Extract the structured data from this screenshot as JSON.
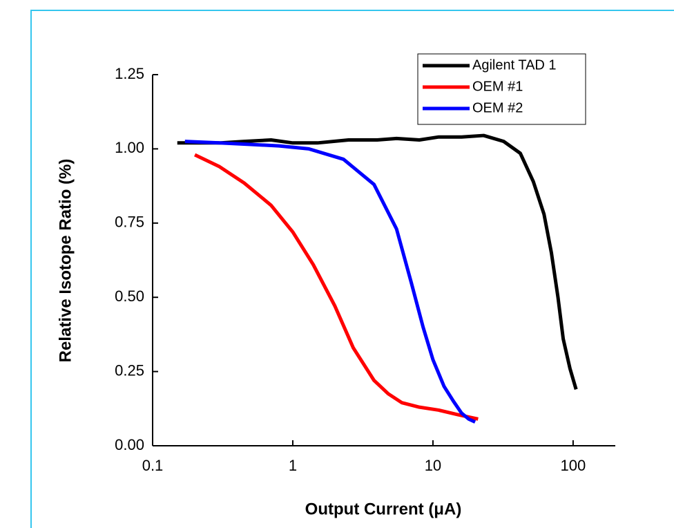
{
  "chart_data": {
    "type": "line",
    "x_label": "Output Current (μA)",
    "y_label": "Relative Isotope Ratio (%)",
    "x_scale": "log",
    "xlim": [
      0.1,
      200
    ],
    "xticks": [
      0.1,
      1,
      10,
      100
    ],
    "ylim": [
      0,
      1.25
    ],
    "yticks": [
      {
        "value": 0,
        "label": "0.00"
      },
      0.25,
      {
        "value": 0.5,
        "label": "0.50"
      },
      0.75,
      {
        "value": 1,
        "label": "1.00"
      },
      1.25
    ],
    "legend": "top-right",
    "series": [
      {
        "name": "Agilent TAD 1",
        "color": "#000000",
        "x": [
          0.15,
          0.2,
          0.3,
          0.45,
          0.7,
          1.0,
          1.5,
          2.5,
          4,
          5.5,
          8,
          11,
          16,
          23,
          32,
          42,
          52,
          62,
          70,
          78,
          85,
          95,
          105
        ],
        "values": [
          1.02,
          1.02,
          1.02,
          1.025,
          1.03,
          1.02,
          1.02,
          1.03,
          1.03,
          1.035,
          1.03,
          1.04,
          1.04,
          1.045,
          1.025,
          0.985,
          0.89,
          0.78,
          0.65,
          0.5,
          0.36,
          0.26,
          0.19
        ]
      },
      {
        "name": "OEM #1",
        "color": "#ff0000",
        "x": [
          0.2,
          0.3,
          0.45,
          0.7,
          1.0,
          1.4,
          2,
          2.7,
          3.8,
          4.8,
          6,
          8,
          11,
          15,
          21
        ],
        "values": [
          0.98,
          0.94,
          0.885,
          0.81,
          0.72,
          0.61,
          0.47,
          0.33,
          0.22,
          0.175,
          0.145,
          0.13,
          0.12,
          0.105,
          0.09
        ]
      },
      {
        "name": "OEM #2",
        "color": "#0000ff",
        "x": [
          0.17,
          0.3,
          0.5,
          0.8,
          1.3,
          2.3,
          3.8,
          5.5,
          7,
          8.5,
          10,
          12,
          14,
          16,
          18,
          20
        ],
        "values": [
          1.025,
          1.02,
          1.015,
          1.01,
          1.0,
          0.965,
          0.88,
          0.73,
          0.55,
          0.4,
          0.29,
          0.2,
          0.15,
          0.11,
          0.09,
          0.08
        ]
      }
    ]
  }
}
